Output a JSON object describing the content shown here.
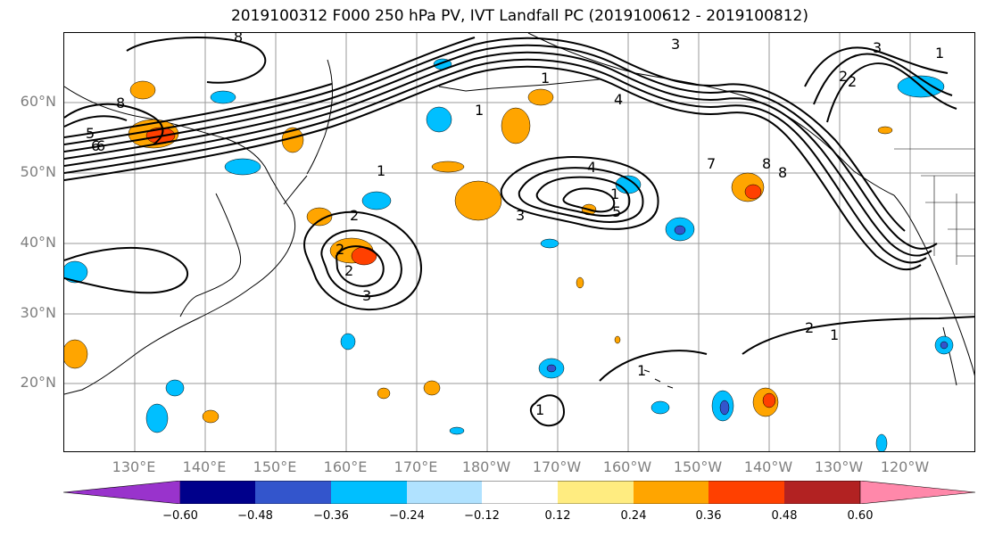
{
  "title": "2019100312 F000 250 hPa PV, IVT Landfall PC (2019100612 - 2019100812)",
  "lat_labels": [
    "60°N",
    "50°N",
    "40°N",
    "30°N",
    "20°N"
  ],
  "lon_labels": [
    "130°E",
    "140°E",
    "150°E",
    "160°E",
    "170°E",
    "180°W",
    "170°W",
    "160°W",
    "150°W",
    "140°W",
    "130°W",
    "120°W"
  ],
  "colorbar": {
    "ticks": [
      "−0.60",
      "−0.48",
      "−0.36",
      "−0.24",
      "−0.12",
      "0.12",
      "0.24",
      "0.36",
      "0.48",
      "0.60"
    ],
    "colors": [
      "#9933cc",
      "#00008b",
      "#3355cc",
      "#00bfff",
      "#b0e2ff",
      "#ffffff",
      "#ffec80",
      "#ffa500",
      "#ff4000",
      "#b22222",
      "#ff88aa"
    ],
    "extend": "both"
  },
  "contour_labels": [
    "8",
    "3",
    "1",
    "3",
    "8",
    "2",
    "1",
    "1",
    "4",
    "4",
    "3",
    "2",
    "5",
    "1",
    "6",
    "5",
    "1",
    "2",
    "2",
    "3",
    "1",
    "2",
    "8",
    "7",
    "2",
    "1",
    "1",
    "8",
    "6"
  ]
}
